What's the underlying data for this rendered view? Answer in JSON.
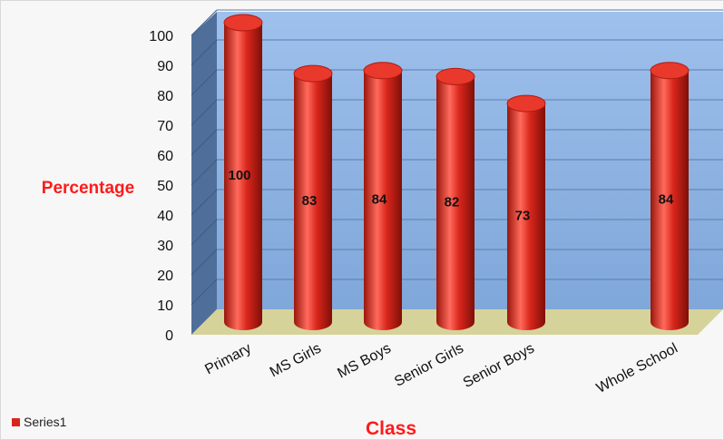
{
  "chart_data": {
    "type": "bar",
    "categories": [
      "Primary",
      "MS Girls",
      "MS Boys",
      "Senior Girls",
      "Senior Boys",
      "Whole School"
    ],
    "series": [
      {
        "name": "Series1",
        "values": [
          100,
          83,
          84,
          82,
          73,
          84
        ]
      }
    ],
    "data_labels": [
      "100",
      "83",
      "84",
      "82",
      "73",
      "84"
    ],
    "xlabel": "Class",
    "ylabel": "Percentage",
    "ylim": [
      0,
      100
    ],
    "yticks": [
      "0",
      "10",
      "20",
      "30",
      "40",
      "50",
      "60",
      "70",
      "80",
      "90",
      "100"
    ],
    "grid": true,
    "legend_position": "bottom-left",
    "bar_style": "3d-cylinder",
    "colors": {
      "bar": "#d9261c",
      "bar_dark": "#8e1209",
      "bar_light": "#ff7a6e",
      "back_wall": "#8eb4e3",
      "side_wall": "#4f6f9a",
      "floor": "#d6d39a",
      "axis_title": "#ff1a1a"
    }
  }
}
